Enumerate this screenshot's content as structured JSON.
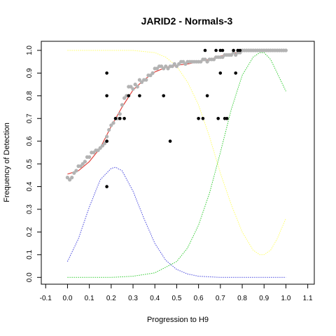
{
  "chart_data": {
    "type": "scatter",
    "title": "JARID2 - Normals-3",
    "xlabel": "Progression to H9",
    "ylabel": "Frequency of Detection",
    "xlim": [
      -0.12,
      1.13
    ],
    "ylim": [
      -0.03,
      1.04
    ],
    "x_ticks": [
      "-0.1",
      "0.0",
      "0.1",
      "0.2",
      "0.3",
      "0.4",
      "0.5",
      "0.6",
      "0.7",
      "0.8",
      "0.9",
      "1.0",
      "1.1"
    ],
    "x_tick_values": [
      -0.1,
      0.0,
      0.1,
      0.2,
      0.3,
      0.4,
      0.5,
      0.6,
      0.7,
      0.8,
      0.9,
      1.0,
      1.1
    ],
    "y_ticks": [
      "0.0",
      "0.1",
      "0.2",
      "0.3",
      "0.4",
      "0.5",
      "0.6",
      "0.7",
      "0.8",
      "0.9",
      "1.0"
    ],
    "y_tick_values": [
      0.0,
      0.1,
      0.2,
      0.3,
      0.4,
      0.5,
      0.6,
      0.7,
      0.8,
      0.9,
      1.0
    ],
    "grid": false,
    "series": [
      {
        "kind": "points",
        "color": "#b3b3b3",
        "x": [
          0.0,
          0.01,
          0.02,
          0.03,
          0.04,
          0.05,
          0.06,
          0.07,
          0.08,
          0.09,
          0.1,
          0.11,
          0.12,
          0.13,
          0.14,
          0.15,
          0.16,
          0.17,
          0.18,
          0.19,
          0.2,
          0.21,
          0.22,
          0.23,
          0.24,
          0.25,
          0.26,
          0.27,
          0.28,
          0.29,
          0.3,
          0.31,
          0.32,
          0.33,
          0.34,
          0.35,
          0.36,
          0.37,
          0.38,
          0.39,
          0.4,
          0.41,
          0.42,
          0.43,
          0.44,
          0.45,
          0.46,
          0.47,
          0.48,
          0.49,
          0.5,
          0.51,
          0.52,
          0.53,
          0.54,
          0.55,
          0.56,
          0.57,
          0.58,
          0.59,
          0.6,
          0.61,
          0.62,
          0.63,
          0.64,
          0.65,
          0.66,
          0.67,
          0.68,
          0.69,
          0.7,
          0.71,
          0.72,
          0.73,
          0.74,
          0.75,
          0.76,
          0.77,
          0.78,
          0.79,
          0.8,
          0.81,
          0.82,
          0.83,
          0.84,
          0.85,
          0.86,
          0.87,
          0.88,
          0.89,
          0.9,
          0.91,
          0.92,
          0.93,
          0.94,
          0.95,
          0.96,
          0.97,
          0.98,
          0.99,
          1.0
        ],
        "y": [
          0.44,
          0.43,
          0.44,
          0.46,
          0.47,
          0.49,
          0.49,
          0.5,
          0.51,
          0.53,
          0.53,
          0.55,
          0.55,
          0.56,
          0.56,
          0.57,
          0.58,
          0.59,
          0.62,
          0.65,
          0.67,
          0.68,
          0.7,
          0.7,
          0.72,
          0.76,
          0.79,
          0.8,
          0.84,
          0.84,
          0.83,
          0.85,
          0.84,
          0.87,
          0.86,
          0.87,
          0.87,
          0.89,
          0.89,
          0.9,
          0.92,
          0.92,
          0.93,
          0.93,
          0.92,
          0.93,
          0.92,
          0.93,
          0.93,
          0.94,
          0.93,
          0.94,
          0.95,
          0.95,
          0.94,
          0.95,
          0.95,
          0.95,
          0.95,
          0.95,
          0.95,
          0.95,
          0.96,
          0.96,
          0.95,
          0.96,
          0.96,
          0.96,
          0.97,
          0.97,
          0.97,
          0.97,
          0.98,
          0.98,
          0.98,
          0.98,
          0.99,
          0.98,
          0.99,
          0.99,
          1.0,
          1.0,
          1.0,
          1.0,
          1.0,
          1.0,
          1.0,
          1.0,
          1.0,
          1.0,
          1.0,
          1.0,
          1.0,
          1.0,
          1.0,
          1.0,
          1.0,
          1.0,
          1.0,
          1.0,
          1.0
        ]
      },
      {
        "kind": "points",
        "color": "#000000",
        "x": [
          0.18,
          0.18,
          0.18,
          0.18,
          0.18,
          0.22,
          0.24,
          0.26,
          0.28,
          0.33,
          0.44,
          0.47,
          0.6,
          0.62,
          0.63,
          0.64,
          0.68,
          0.69,
          0.7,
          0.7,
          0.71,
          0.72,
          0.73,
          0.76,
          0.77,
          0.78,
          0.79
        ],
        "y": [
          0.9,
          0.8,
          0.6,
          0.4,
          0.6,
          0.7,
          0.7,
          0.7,
          0.8,
          0.8,
          0.8,
          0.6,
          0.7,
          0.7,
          1.0,
          0.8,
          1.0,
          0.7,
          1.0,
          0.9,
          1.0,
          0.7,
          0.7,
          1.0,
          0.9,
          1.0,
          1.0
        ]
      },
      {
        "kind": "line",
        "color": "#e0433d",
        "style": "solid",
        "x": [
          0.0,
          0.05,
          0.1,
          0.15,
          0.2,
          0.25,
          0.3,
          0.35,
          0.4,
          0.45,
          0.5,
          0.55,
          0.6,
          0.65,
          0.7,
          0.75,
          0.8,
          0.85,
          0.9,
          0.95,
          1.0
        ],
        "y": [
          0.455,
          0.47,
          0.51,
          0.57,
          0.665,
          0.75,
          0.825,
          0.87,
          0.905,
          0.925,
          0.935,
          0.94,
          0.95,
          0.96,
          0.975,
          0.985,
          0.995,
          1.0,
          1.0,
          1.0,
          1.0
        ]
      },
      {
        "kind": "line",
        "color": "#4444dd",
        "style": "dotted",
        "x": [
          0.0,
          0.05,
          0.1,
          0.15,
          0.2,
          0.22,
          0.25,
          0.3,
          0.35,
          0.4,
          0.45,
          0.5,
          0.55,
          0.6,
          0.7,
          0.8,
          0.9,
          1.0
        ],
        "y": [
          0.07,
          0.17,
          0.31,
          0.43,
          0.48,
          0.485,
          0.47,
          0.38,
          0.26,
          0.15,
          0.075,
          0.035,
          0.015,
          0.005,
          0.0,
          0.0,
          0.0,
          0.0
        ]
      },
      {
        "kind": "line",
        "color": "#33cc33",
        "style": "dotted",
        "x": [
          0.0,
          0.1,
          0.2,
          0.3,
          0.4,
          0.5,
          0.55,
          0.6,
          0.65,
          0.7,
          0.75,
          0.8,
          0.85,
          0.88,
          0.9,
          0.93,
          0.96,
          1.0
        ],
        "y": [
          0.0,
          0.0,
          0.0,
          0.005,
          0.02,
          0.07,
          0.13,
          0.23,
          0.37,
          0.55,
          0.74,
          0.89,
          0.97,
          0.99,
          0.99,
          0.96,
          0.9,
          0.82
        ]
      },
      {
        "kind": "line",
        "color": "#ffff66",
        "style": "dotted",
        "x": [
          0.0,
          0.1,
          0.2,
          0.3,
          0.4,
          0.45,
          0.5,
          0.55,
          0.6,
          0.65,
          0.7,
          0.75,
          0.8,
          0.85,
          0.88,
          0.9,
          0.93,
          0.96,
          1.0
        ],
        "y": [
          1.0,
          1.0,
          1.0,
          1.0,
          0.99,
          0.97,
          0.93,
          0.86,
          0.76,
          0.62,
          0.46,
          0.32,
          0.2,
          0.12,
          0.1,
          0.1,
          0.12,
          0.17,
          0.26
        ]
      }
    ]
  }
}
